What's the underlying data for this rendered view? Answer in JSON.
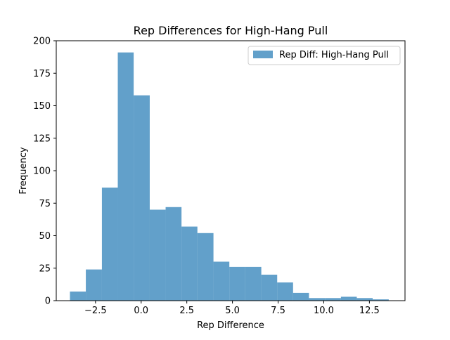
{
  "chart_data": {
    "type": "bar",
    "title": "Rep Differences for High-Hang Pull",
    "xlabel": "Rep Difference",
    "ylabel": "Frequency",
    "xlim": [
      -4.65,
      14.45
    ],
    "ylim": [
      0,
      200
    ],
    "x_ticks": [
      -2.5,
      0.0,
      2.5,
      5.0,
      7.5,
      10.0,
      12.5
    ],
    "x_tick_labels": [
      "−2.5",
      "0.0",
      "2.5",
      "5.0",
      "7.5",
      "10.0",
      "12.5"
    ],
    "y_ticks": [
      0,
      25,
      50,
      75,
      100,
      125,
      150,
      175,
      200
    ],
    "y_tick_labels": [
      "0",
      "25",
      "50",
      "75",
      "100",
      "125",
      "150",
      "175",
      "200"
    ],
    "bin_edges": [
      -3.9,
      -3.03,
      -2.15,
      -1.28,
      -0.41,
      0.47,
      1.34,
      2.21,
      3.08,
      3.96,
      4.83,
      5.7,
      6.58,
      7.45,
      8.32,
      9.19,
      10.07,
      10.94,
      11.81,
      12.68,
      13.56
    ],
    "values": [
      7,
      24,
      87,
      191,
      158,
      70,
      72,
      57,
      52,
      30,
      26,
      26,
      20,
      14,
      6,
      2,
      2,
      3,
      2,
      1
    ],
    "grid": false,
    "legend_position": "top-right",
    "series": [
      {
        "name": "Rep Diff: High-Hang Pull",
        "color": "#1f77b4"
      }
    ]
  }
}
